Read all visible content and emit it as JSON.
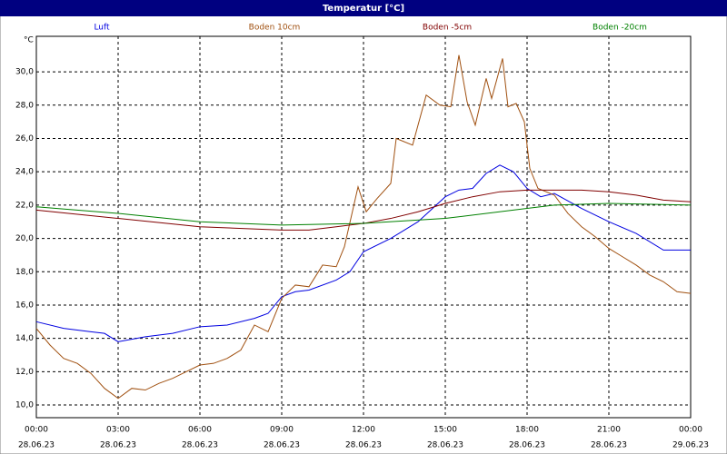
{
  "chart_data": {
    "type": "line",
    "title": "Temperatur [°C]",
    "y_unit": "°C",
    "xlim": [
      0,
      24
    ],
    "ylim": [
      9.24,
      32.13
    ],
    "xticks": [
      {
        "value": 0,
        "label": "00:00"
      },
      {
        "value": 3,
        "label": "03:00"
      },
      {
        "value": 6,
        "label": "06:00"
      },
      {
        "value": 9,
        "label": "09:00"
      },
      {
        "value": 12,
        "label": "12:00"
      },
      {
        "value": 15,
        "label": "15:00"
      },
      {
        "value": 18,
        "label": "18:00"
      },
      {
        "value": 21,
        "label": "21:00"
      },
      {
        "value": 24,
        "label": "00:00"
      }
    ],
    "xtick_dates": [
      "28.06.23",
      "28.06.23",
      "28.06.23",
      "28.06.23",
      "28.06.23",
      "28.06.23",
      "28.06.23",
      "28.06.23",
      "29.06.23"
    ],
    "yticks": [
      {
        "value": 10,
        "label": "10,0"
      },
      {
        "value": 12,
        "label": "12,0"
      },
      {
        "value": 14,
        "label": "14,0"
      },
      {
        "value": 16,
        "label": "16,0"
      },
      {
        "value": 18,
        "label": "18,0"
      },
      {
        "value": 20,
        "label": "20,0"
      },
      {
        "value": 22,
        "label": "22,0"
      },
      {
        "value": 24,
        "label": "24,0"
      },
      {
        "value": 26,
        "label": "26,0"
      },
      {
        "value": 28,
        "label": "28,0"
      },
      {
        "value": 30,
        "label": "30,0"
      }
    ],
    "grid": true,
    "series": [
      {
        "name": "Luft",
        "color": "#0000e0",
        "x": [
          0,
          1,
          2,
          2.5,
          3,
          4,
          5,
          6,
          7,
          8,
          8.5,
          9,
          9.5,
          10,
          11,
          11.5,
          12,
          13,
          14,
          15,
          15.5,
          16,
          16.5,
          17,
          17.5,
          18,
          18.5,
          19,
          20,
          21,
          22,
          23,
          24
        ],
        "values": [
          15.0,
          14.6,
          14.4,
          14.3,
          13.8,
          14.1,
          14.3,
          14.7,
          14.8,
          15.2,
          15.5,
          16.5,
          16.8,
          16.9,
          17.5,
          18.0,
          19.2,
          20.0,
          21.0,
          22.5,
          22.9,
          23.0,
          23.9,
          24.4,
          24.0,
          23.0,
          22.5,
          22.7,
          21.8,
          21.0,
          20.3,
          19.3,
          19.3
        ]
      },
      {
        "name": "Boden 10cm",
        "color": "#a05010",
        "x": [
          0,
          0.5,
          1,
          1.5,
          2,
          2.5,
          3,
          3.5,
          4,
          4.5,
          5,
          5.5,
          6,
          6.5,
          7,
          7.5,
          8,
          8.5,
          9,
          9.5,
          10,
          10.5,
          11,
          11.3,
          11.8,
          12.1,
          12.5,
          13,
          13.2,
          13.8,
          14.3,
          14.8,
          15.2,
          15.5,
          15.8,
          16.1,
          16.5,
          16.7,
          17.1,
          17.3,
          17.6,
          17.9,
          18.1,
          18.4,
          19,
          19.5,
          20,
          20.5,
          21,
          21.5,
          22,
          22.5,
          23,
          23.5,
          24
        ],
        "values": [
          14.6,
          13.6,
          12.8,
          12.5,
          11.9,
          11.0,
          10.4,
          11.0,
          10.9,
          11.3,
          11.6,
          12.0,
          12.4,
          12.5,
          12.8,
          13.3,
          14.8,
          14.4,
          16.4,
          17.2,
          17.1,
          18.4,
          18.3,
          19.5,
          23.1,
          21.6,
          22.4,
          23.3,
          26.0,
          25.6,
          28.6,
          28.0,
          27.9,
          31.0,
          28.2,
          26.8,
          29.6,
          28.4,
          30.8,
          27.9,
          28.1,
          27.0,
          24.2,
          23.0,
          22.6,
          21.5,
          20.7,
          20.1,
          19.4,
          18.9,
          18.4,
          17.8,
          17.4,
          16.8,
          16.7
        ]
      },
      {
        "name": "Boden -5cm",
        "color": "#800000",
        "x": [
          0,
          3,
          6,
          9,
          10,
          11,
          12,
          13,
          14,
          15,
          16,
          17,
          18,
          19,
          20,
          21,
          22,
          23,
          24
        ],
        "values": [
          21.7,
          21.2,
          20.7,
          20.5,
          20.5,
          20.7,
          20.9,
          21.2,
          21.6,
          22.1,
          22.5,
          22.8,
          22.9,
          22.9,
          22.9,
          22.8,
          22.6,
          22.3,
          22.2
        ]
      },
      {
        "name": "Boden -20cm",
        "color": "#008000",
        "x": [
          0,
          3,
          6,
          9,
          12,
          15,
          18,
          19,
          21,
          24
        ],
        "values": [
          21.9,
          21.5,
          21.0,
          20.8,
          20.9,
          21.2,
          21.8,
          22.0,
          22.1,
          22.0
        ]
      }
    ]
  }
}
